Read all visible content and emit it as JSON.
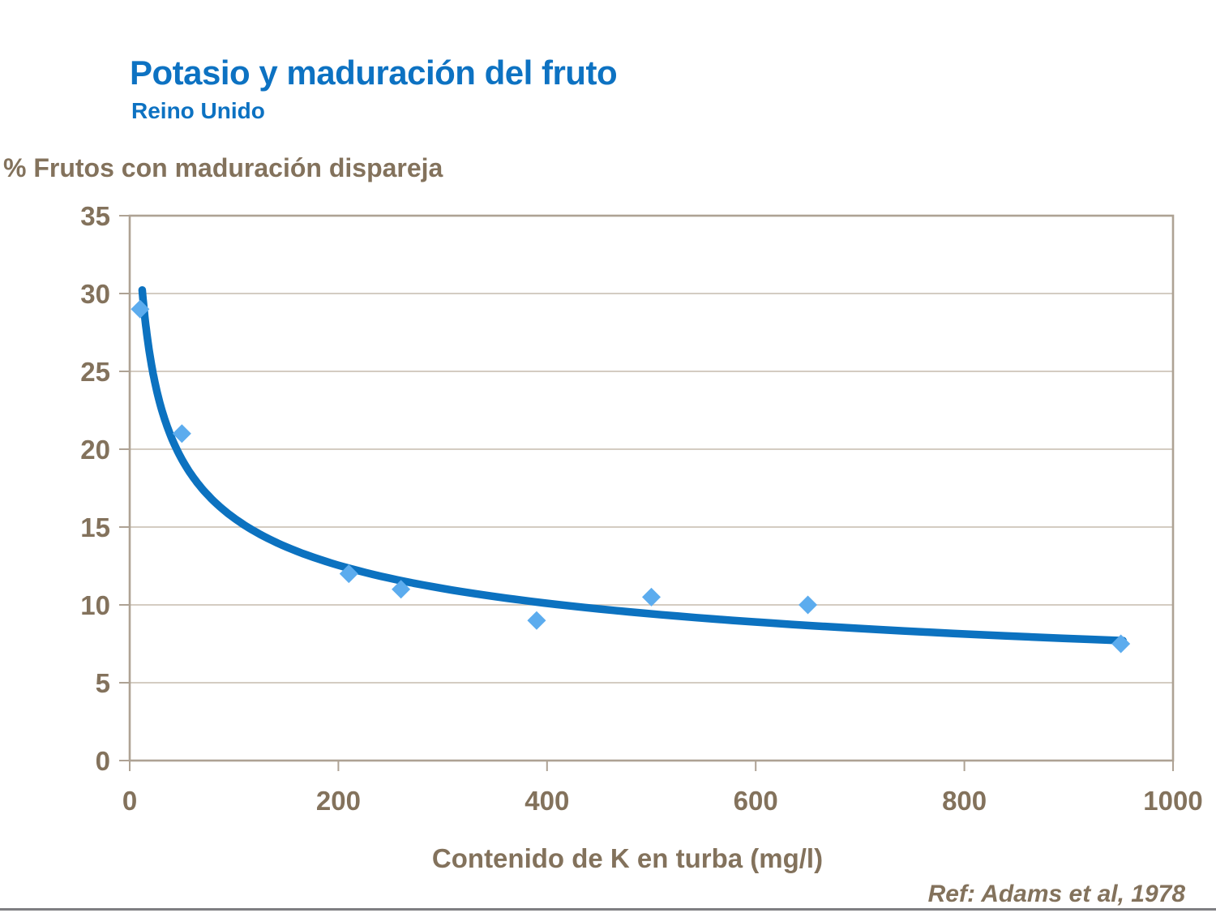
{
  "slide": {
    "title": "Potasio y maduración del fruto",
    "subtitle": "Reino Unido",
    "reference": "Ref: Adams et al, 1978"
  },
  "chart_data": {
    "type": "scatter",
    "title": "Potasio y maduración del fruto",
    "subtitle": "Reino Unido",
    "ylabel": "% Frutos con maduración dispareja",
    "xlabel": "Contenido de K en turba (mg/l)",
    "xlim": [
      0,
      1000
    ],
    "ylim": [
      0,
      35
    ],
    "x_ticks": [
      0,
      200,
      400,
      600,
      800,
      1000
    ],
    "y_ticks": [
      0,
      5,
      10,
      15,
      20,
      25,
      30,
      35
    ],
    "grid": "horizontal",
    "legend_position": "none",
    "series": [
      {
        "name": "Frutos con maduración dispareja",
        "marker": "diamond",
        "points": [
          {
            "x": 10,
            "y": 29
          },
          {
            "x": 50,
            "y": 21
          },
          {
            "x": 210,
            "y": 12
          },
          {
            "x": 260,
            "y": 11
          },
          {
            "x": 390,
            "y": 9
          },
          {
            "x": 500,
            "y": 10.5
          },
          {
            "x": 650,
            "y": 10
          },
          {
            "x": 950,
            "y": 7.5
          }
        ]
      }
    ],
    "trend_curve": {
      "type": "power",
      "equation": "y = 65.7 * x^(-0.3125)",
      "a": 65.7,
      "b": 0.3125,
      "x_start": 12,
      "x_end": 952
    }
  },
  "colors": {
    "title_blue": "#0D72C2",
    "axis_text": "#83725C",
    "gridline": "#C6BCAE",
    "plot_border": "#AEA294",
    "tick_mark": "#AEA294",
    "curve": "#0C72C0",
    "marker_fill": "#5CACEE",
    "bottom_rule": "#7E7E82"
  }
}
